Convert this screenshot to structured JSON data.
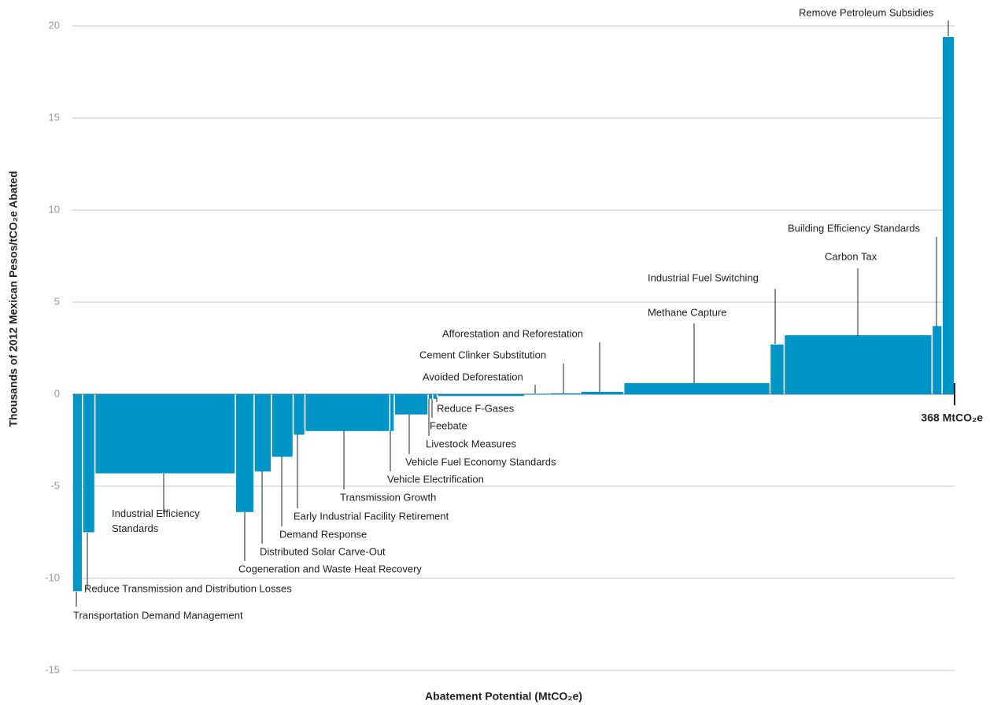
{
  "chart_data": {
    "type": "mac",
    "ylabel": "Thousands of 2012 Mexican Pesos/tCO₂e Abated",
    "xlabel": "Abatement Potential (MtCO₂e)",
    "annotation": "368 MtCO₂e",
    "color": "#0095c8",
    "categories": [
      "Transportation Demand Management",
      "Reduce Transmission and Distribution Losses",
      "Industrial Efficiency Standards",
      "Cogeneration and Waste Heat Recovery",
      "Distributed Solar Carve-Out",
      "Demand Response",
      "Early Industrial Facility Retirement",
      "Transmission Growth",
      "Vehicle Electrification",
      "Vehicle Fuel Economy Standards",
      "Livestock Measures",
      "Feebate",
      "Reduce F-Gases",
      "Avoided Deforestation",
      "Cement Clinker Substitution",
      "Afforestation and Reforestation",
      "Methane Capture",
      "Industrial Fuel Switching",
      "Carbon Tax",
      "Building Efficiency Standards",
      "Remove Petroleum Subsidies"
    ],
    "values": [
      -10.7,
      -7.5,
      -4.3,
      -6.4,
      -4.2,
      -3.4,
      -2.2,
      -2.0,
      -2.0,
      -1.1,
      -0.25,
      -0.25,
      -0.1,
      0.02,
      0.05,
      0.13,
      0.6,
      2.7,
      3.2,
      3.7,
      19.4
    ],
    "widths": [
      4.2,
      5.2,
      58.6,
      7.8,
      7.2,
      9.1,
      4.9,
      35.4,
      1.9,
      14.1,
      1.9,
      1.9,
      36.6,
      10.6,
      12.6,
      18.0,
      61.0,
      5.9,
      61.7,
      4.2,
      5.2
    ],
    "xlim": [
      0,
      368
    ],
    "ylim": [
      -15,
      20
    ],
    "yticks": [
      -15,
      -10,
      -5,
      0,
      5,
      10,
      15,
      20
    ],
    "grid": true
  }
}
